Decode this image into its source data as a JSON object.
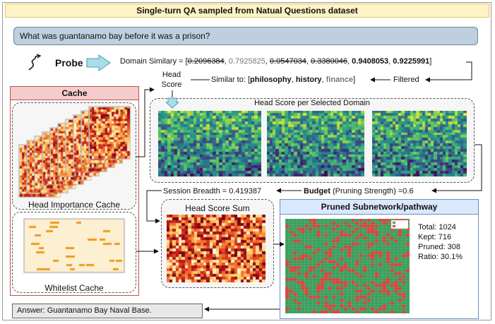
{
  "title": "Single-turn QA sampled from Natual Questions dataset",
  "question": "What was guantanamo bay before it was a prison?",
  "probe": {
    "label": "Probe"
  },
  "domain_similarity": {
    "prefix": "Domain Similary = [",
    "values": [
      "0.2096384",
      "0.7925825",
      "0.0547034",
      "0.3380046",
      "0.9408053",
      "0.9225991"
    ],
    "separator": ", ",
    "suffix": "]"
  },
  "head_score_label": "Head Score",
  "similar_to": {
    "prefix": "Similar to: [",
    "domains": [
      "philosophy",
      "history",
      "finance"
    ],
    "separator": ", ",
    "suffix": "]"
  },
  "filtered_label": "Filtered",
  "cache": {
    "title": "Cache",
    "head_importance_label": "Head Importance Cache",
    "whitelist_label": "Whitelist Cache"
  },
  "head_score_panel": {
    "title": "Head Score per Selected Domain"
  },
  "session": {
    "text": "Session Breadth = 0.419387"
  },
  "budget": {
    "label": "Budget",
    "rest": " (Pruning Strength) =0.6"
  },
  "head_score_sum": {
    "title": "Head Score Sum"
  },
  "pruned": {
    "title": "Pruned Subnetwork/pathway",
    "total": "Total: 1024",
    "kept": "Kept: 716",
    "pruned": "Pruned: 308",
    "ratio": "Ratio: 30.1%"
  },
  "answer": "Answer: Guantanamo Bay Naval Base.",
  "colors": {
    "title_bg": "#fdf3c4",
    "question_bg": "#bfcfdf",
    "cache_border": "#c0504d",
    "cache_title_bg": "#f4cccc",
    "pruned_title_bg": "#dae8fc",
    "kept_green": "#3a9e5c",
    "pruned_red": "#d9423a",
    "probe_arrow": "#a9dde8"
  },
  "icons": [
    "squiggle-icon",
    "probe-arrow-icon"
  ]
}
